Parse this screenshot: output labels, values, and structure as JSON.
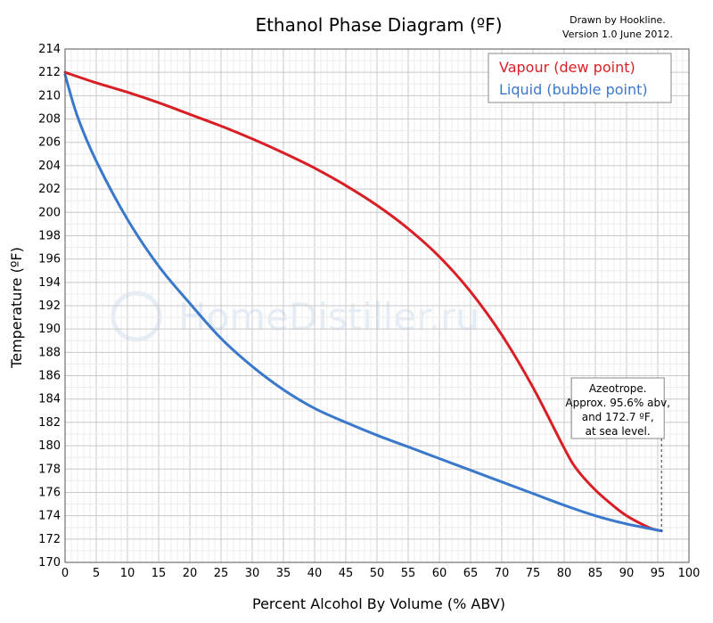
{
  "chart_data": {
    "type": "line",
    "title": "Ethanol Phase Diagram (ºF)",
    "credit": [
      "Drawn by Hookline.",
      "Version 1.0 June 2012."
    ],
    "xlabel": "Percent Alcohol By Volume (% ABV)",
    "ylabel": "Temperature (ºF)",
    "xlim": [
      0,
      100
    ],
    "ylim": [
      170,
      214
    ],
    "x_ticks": [
      0,
      5,
      10,
      15,
      20,
      25,
      30,
      35,
      40,
      45,
      50,
      55,
      60,
      65,
      70,
      75,
      80,
      85,
      90,
      95,
      100
    ],
    "y_ticks": [
      170,
      172,
      174,
      176,
      178,
      180,
      182,
      184,
      186,
      188,
      190,
      192,
      194,
      196,
      198,
      200,
      202,
      204,
      206,
      208,
      210,
      212,
      214
    ],
    "grid": true,
    "legend_position": "top-right",
    "series": [
      {
        "name": "Vapour (dew point)",
        "color": "#d91f26",
        "x": [
          0,
          5,
          10,
          15,
          20,
          25,
          30,
          35,
          40,
          45,
          50,
          55,
          60,
          65,
          70,
          75,
          80,
          82,
          85,
          88,
          90,
          92,
          94,
          95.6
        ],
        "y": [
          212,
          211.1,
          210.3,
          209.4,
          208.4,
          207.4,
          206.3,
          205.1,
          203.8,
          202.3,
          200.6,
          198.6,
          196.2,
          193.2,
          189.5,
          185,
          179.8,
          178,
          176.2,
          174.8,
          174,
          173.4,
          172.9,
          172.7
        ]
      },
      {
        "name": "Liquid (bubble point)",
        "color": "#3a78cc",
        "x": [
          0,
          2,
          5,
          10,
          15,
          20,
          25,
          30,
          35,
          40,
          45,
          50,
          55,
          60,
          65,
          70,
          75,
          80,
          85,
          90,
          95.6
        ],
        "y": [
          211.8,
          208.2,
          204.4,
          199.4,
          195.4,
          192.2,
          189.2,
          186.8,
          184.8,
          183.2,
          182,
          180.9,
          179.9,
          178.9,
          177.9,
          176.9,
          175.9,
          174.9,
          174,
          173.3,
          172.7
        ]
      }
    ],
    "annotations": [
      {
        "text": [
          "Azeotrope.",
          "Approx. 95.6% abv,",
          "and 172.7 ºF,",
          "at sea level."
        ],
        "x": 95.6,
        "y": 172.7
      }
    ],
    "watermark": "HomeDistiller.ru"
  }
}
